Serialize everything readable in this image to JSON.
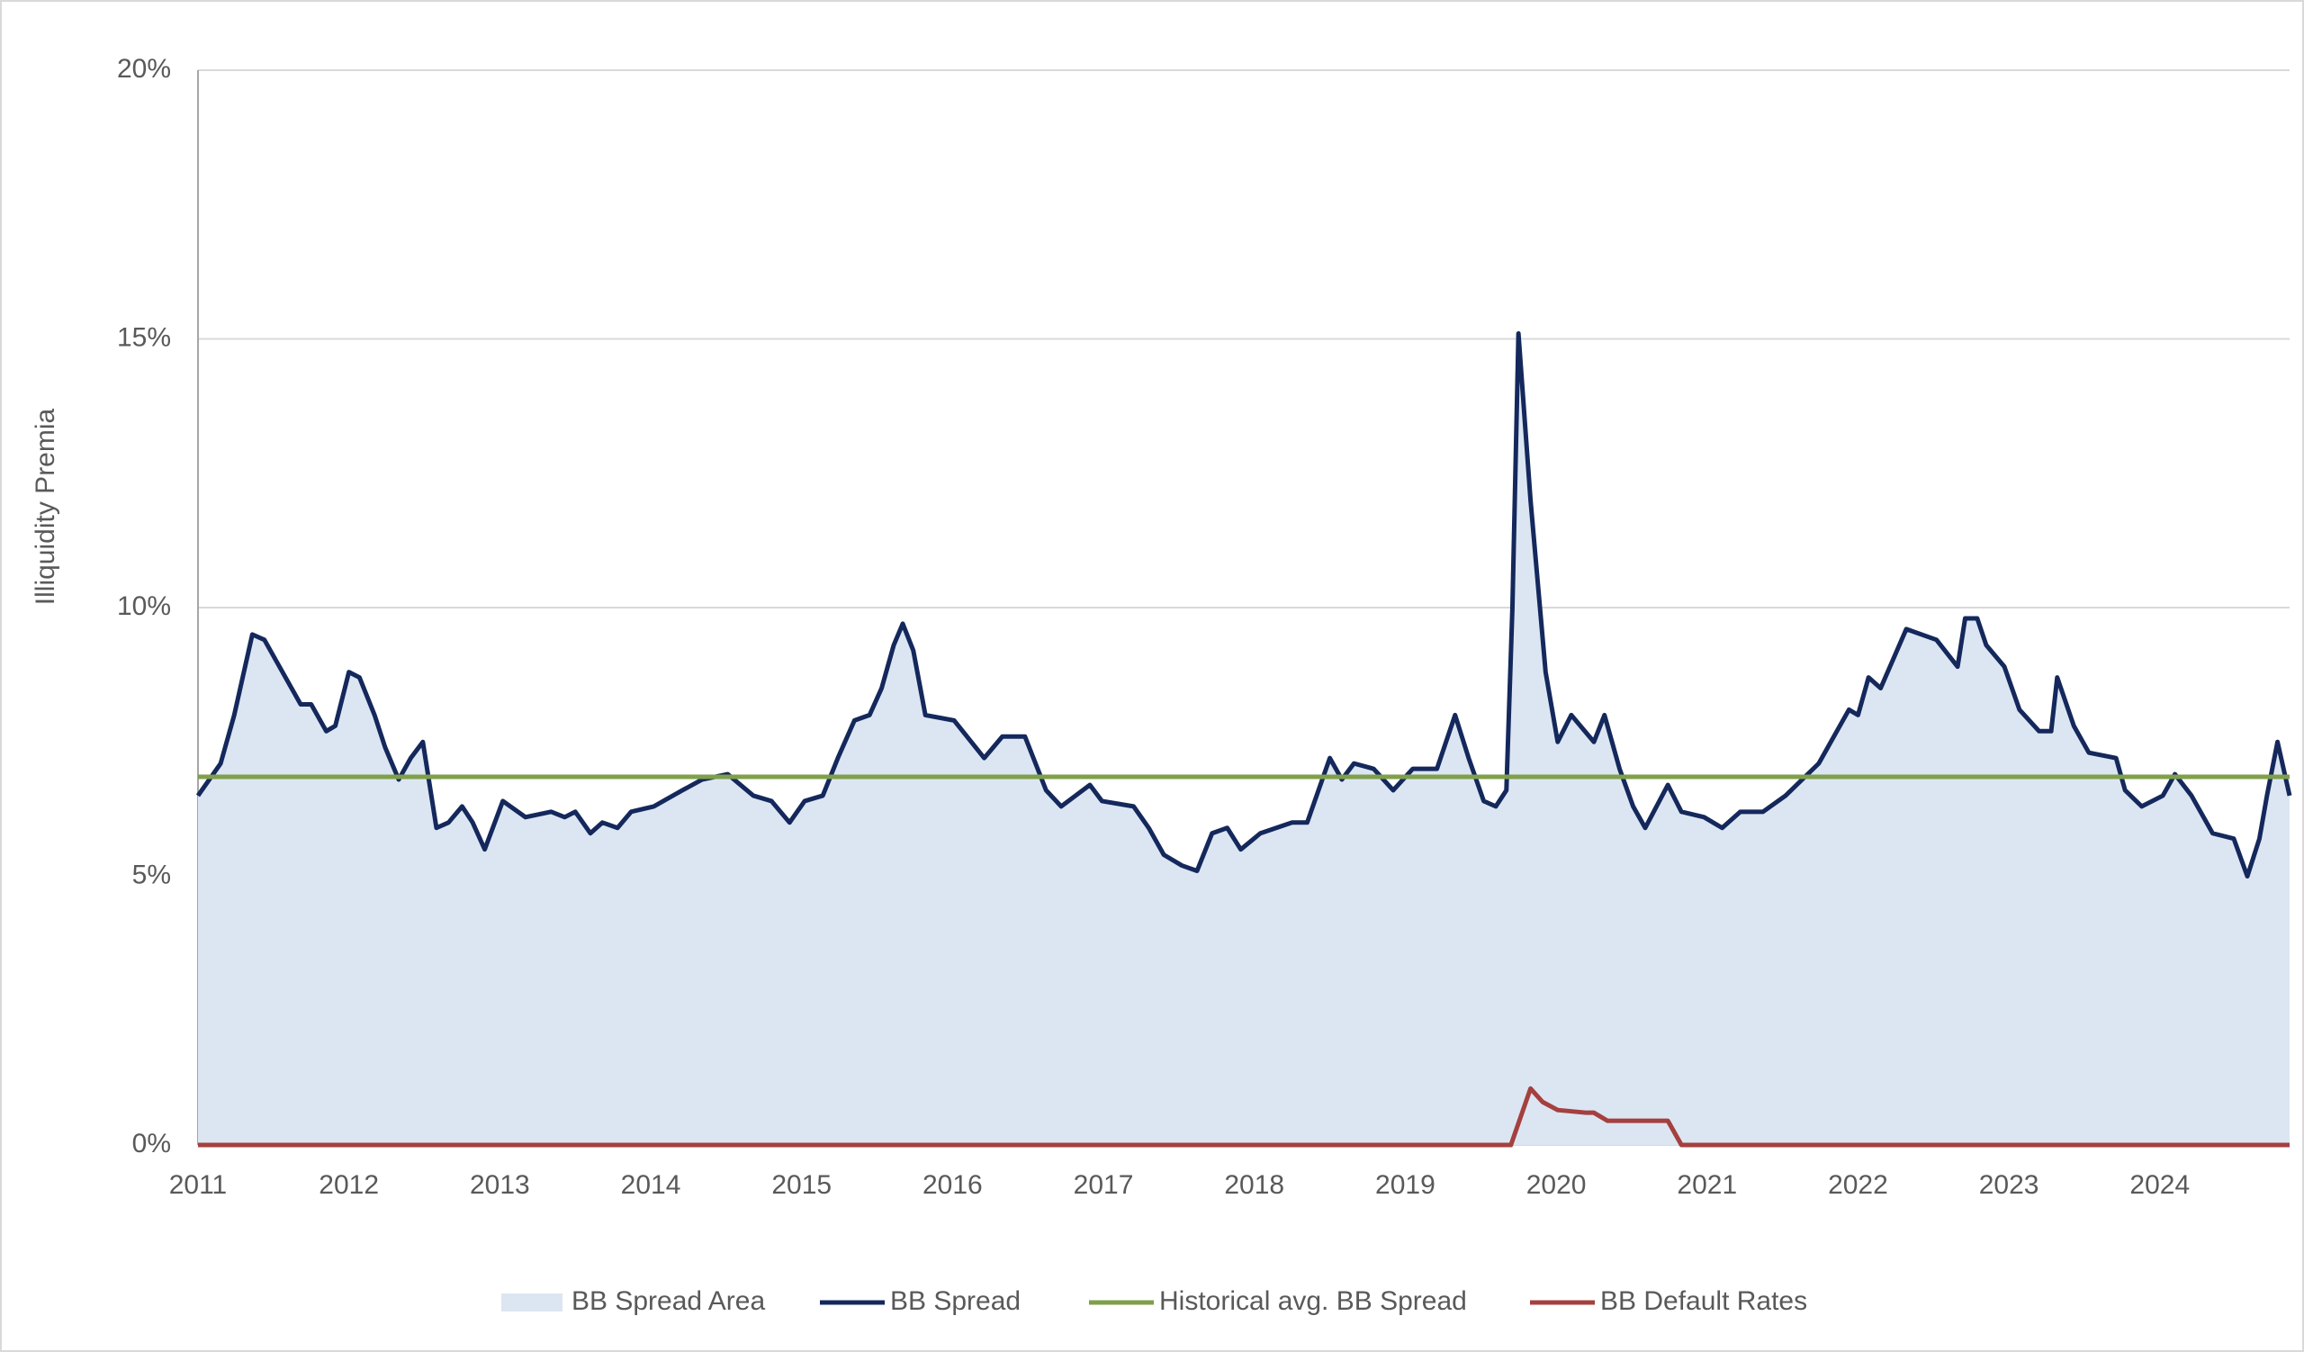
{
  "chart_data": {
    "type": "line",
    "ylabel": "Illiquidity Premia",
    "xlim": [
      2011,
      2024.86
    ],
    "xticks": [
      2011,
      2012,
      2013,
      2014,
      2015,
      2016,
      2017,
      2018,
      2019,
      2020,
      2021,
      2022,
      2023,
      2024
    ],
    "ylim": [
      0,
      20
    ],
    "yticks": [
      {
        "value": 0,
        "label": "0%"
      },
      {
        "value": 5,
        "label": "5%"
      },
      {
        "value": 10,
        "label": "10%"
      },
      {
        "value": 15,
        "label": "15%"
      },
      {
        "value": 20,
        "label": "20%"
      }
    ],
    "grid": true,
    "legend": "bottom",
    "series": [
      {
        "name": "BB Spread Area",
        "kind": "area",
        "color": "#dce6f2",
        "x": [
          2011.0,
          2011.15,
          2011.24,
          2011.36,
          2011.44,
          2011.54,
          2011.68,
          2011.75,
          2011.85,
          2011.91,
          2012.0,
          2012.07,
          2012.17,
          2012.24,
          2012.33,
          2012.41,
          2012.49,
          2012.58,
          2012.66,
          2012.75,
          2012.82,
          2012.9,
          2013.02,
          2013.17,
          2013.34,
          2013.43,
          2013.5,
          2013.6,
          2013.68,
          2013.78,
          2013.87,
          2014.02,
          2014.21,
          2014.34,
          2014.51,
          2014.68,
          2014.8,
          2014.92,
          2015.02,
          2015.14,
          2015.24,
          2015.35,
          2015.45,
          2015.53,
          2015.61,
          2015.67,
          2015.74,
          2015.82,
          2016.01,
          2016.21,
          2016.33,
          2016.48,
          2016.62,
          2016.72,
          2016.91,
          2016.99,
          2017.2,
          2017.3,
          2017.4,
          2017.52,
          2017.62,
          2017.72,
          2017.82,
          2017.91,
          2018.04,
          2018.25,
          2018.35,
          2018.5,
          2018.58,
          2018.66,
          2018.79,
          2018.92,
          2019.05,
          2019.21,
          2019.33,
          2019.42,
          2019.52,
          2019.6,
          2019.67,
          2019.71,
          2019.75,
          2019.83,
          2019.93,
          2020.01,
          2020.1,
          2020.25,
          2020.32,
          2020.42,
          2020.51,
          2020.59,
          2020.74,
          2020.83,
          2020.98,
          2021.1,
          2021.22,
          2021.37,
          2021.52,
          2021.74,
          2021.94,
          2022.0,
          2022.07,
          2022.15,
          2022.32,
          2022.52,
          2022.66,
          2022.71,
          2022.79,
          2022.85,
          2022.97,
          2023.07,
          2023.2,
          2023.28,
          2023.32,
          2023.43,
          2023.53,
          2023.71,
          2023.77,
          2023.88,
          2024.02,
          2024.1,
          2024.21,
          2024.35,
          2024.49,
          2024.58,
          2024.66,
          2024.71,
          2024.78,
          2024.86
        ],
        "values": [
          6.5,
          7.1,
          8.0,
          9.5,
          9.4,
          8.9,
          8.2,
          8.2,
          7.7,
          7.8,
          8.8,
          8.7,
          8.0,
          7.4,
          6.8,
          7.2,
          7.5,
          5.9,
          6.0,
          6.3,
          6.0,
          5.5,
          6.4,
          6.1,
          6.2,
          6.1,
          6.2,
          5.8,
          6.0,
          5.9,
          6.2,
          6.3,
          6.6,
          6.8,
          6.9,
          6.5,
          6.4,
          6.0,
          6.4,
          6.5,
          7.2,
          7.9,
          8.0,
          8.5,
          9.3,
          9.7,
          9.2,
          8.0,
          7.9,
          7.2,
          7.6,
          7.6,
          6.6,
          6.3,
          6.7,
          6.4,
          6.3,
          5.9,
          5.4,
          5.2,
          5.1,
          5.8,
          5.9,
          5.5,
          5.8,
          6.0,
          6.0,
          7.2,
          6.8,
          7.1,
          7.0,
          6.6,
          7.0,
          7.0,
          8.0,
          7.2,
          6.4,
          6.3,
          6.6,
          10.0,
          15.1,
          12.0,
          8.8,
          7.5,
          8.0,
          7.5,
          8.0,
          7.0,
          6.3,
          5.9,
          6.7,
          6.2,
          6.1,
          5.9,
          6.2,
          6.2,
          6.5,
          7.1,
          8.1,
          8.0,
          8.7,
          8.5,
          9.6,
          9.4,
          8.9,
          9.8,
          9.8,
          9.3,
          8.9,
          8.1,
          7.7,
          7.7,
          8.7,
          7.8,
          7.3,
          7.2,
          6.6,
          6.3,
          6.5,
          6.9,
          6.5,
          5.8,
          5.7,
          5.0,
          5.7,
          6.5,
          7.5,
          6.5
        ]
      },
      {
        "name": "BB Spread",
        "kind": "line",
        "color": "#14285c",
        "x": [
          2011.0,
          2011.15,
          2011.24,
          2011.36,
          2011.44,
          2011.54,
          2011.68,
          2011.75,
          2011.85,
          2011.91,
          2012.0,
          2012.07,
          2012.17,
          2012.24,
          2012.33,
          2012.41,
          2012.49,
          2012.58,
          2012.66,
          2012.75,
          2012.82,
          2012.9,
          2013.02,
          2013.17,
          2013.34,
          2013.43,
          2013.5,
          2013.6,
          2013.68,
          2013.78,
          2013.87,
          2014.02,
          2014.21,
          2014.34,
          2014.51,
          2014.68,
          2014.8,
          2014.92,
          2015.02,
          2015.14,
          2015.24,
          2015.35,
          2015.45,
          2015.53,
          2015.61,
          2015.67,
          2015.74,
          2015.82,
          2016.01,
          2016.21,
          2016.33,
          2016.48,
          2016.62,
          2016.72,
          2016.91,
          2016.99,
          2017.2,
          2017.3,
          2017.4,
          2017.52,
          2017.62,
          2017.72,
          2017.82,
          2017.91,
          2018.04,
          2018.25,
          2018.35,
          2018.5,
          2018.58,
          2018.66,
          2018.79,
          2018.92,
          2019.05,
          2019.21,
          2019.33,
          2019.42,
          2019.52,
          2019.6,
          2019.67,
          2019.71,
          2019.75,
          2019.83,
          2019.93,
          2020.01,
          2020.1,
          2020.25,
          2020.32,
          2020.42,
          2020.51,
          2020.59,
          2020.74,
          2020.83,
          2020.98,
          2021.1,
          2021.22,
          2021.37,
          2021.52,
          2021.74,
          2021.94,
          2022.0,
          2022.07,
          2022.15,
          2022.32,
          2022.52,
          2022.66,
          2022.71,
          2022.79,
          2022.85,
          2022.97,
          2023.07,
          2023.2,
          2023.28,
          2023.32,
          2023.43,
          2023.53,
          2023.71,
          2023.77,
          2023.88,
          2024.02,
          2024.1,
          2024.21,
          2024.35,
          2024.49,
          2024.58,
          2024.66,
          2024.71,
          2024.78,
          2024.86
        ],
        "values": [
          6.5,
          7.1,
          8.0,
          9.5,
          9.4,
          8.9,
          8.2,
          8.2,
          7.7,
          7.8,
          8.8,
          8.7,
          8.0,
          7.4,
          6.8,
          7.2,
          7.5,
          5.9,
          6.0,
          6.3,
          6.0,
          5.5,
          6.4,
          6.1,
          6.2,
          6.1,
          6.2,
          5.8,
          6.0,
          5.9,
          6.2,
          6.3,
          6.6,
          6.8,
          6.9,
          6.5,
          6.4,
          6.0,
          6.4,
          6.5,
          7.2,
          7.9,
          8.0,
          8.5,
          9.3,
          9.7,
          9.2,
          8.0,
          7.9,
          7.2,
          7.6,
          7.6,
          6.6,
          6.3,
          6.7,
          6.4,
          6.3,
          5.9,
          5.4,
          5.2,
          5.1,
          5.8,
          5.9,
          5.5,
          5.8,
          6.0,
          6.0,
          7.2,
          6.8,
          7.1,
          7.0,
          6.6,
          7.0,
          7.0,
          8.0,
          7.2,
          6.4,
          6.3,
          6.6,
          10.0,
          15.1,
          12.0,
          8.8,
          7.5,
          8.0,
          7.5,
          8.0,
          7.0,
          6.3,
          5.9,
          6.7,
          6.2,
          6.1,
          5.9,
          6.2,
          6.2,
          6.5,
          7.1,
          8.1,
          8.0,
          8.7,
          8.5,
          9.6,
          9.4,
          8.9,
          9.8,
          9.8,
          9.3,
          8.9,
          8.1,
          7.7,
          7.7,
          8.7,
          7.8,
          7.3,
          7.2,
          6.6,
          6.3,
          6.5,
          6.9,
          6.5,
          5.8,
          5.7,
          5.0,
          5.7,
          6.5,
          7.5,
          6.5
        ]
      },
      {
        "name": "Historical avg. BB Spread",
        "kind": "line",
        "color": "#7f9f4a",
        "x": [
          2011,
          2024.86
        ],
        "values": [
          6.85,
          6.85
        ]
      },
      {
        "name": "BB Default Rates",
        "kind": "line",
        "color": "#a4403f",
        "x": [
          2011,
          2019.7,
          2019.83,
          2019.91,
          2020.01,
          2020.2,
          2020.25,
          2020.34,
          2020.68,
          2020.74,
          2020.83,
          2024.86
        ],
        "values": [
          0,
          0,
          1.05,
          0.8,
          0.65,
          0.6,
          0.6,
          0.45,
          0.45,
          0.45,
          0,
          0
        ]
      }
    ]
  }
}
